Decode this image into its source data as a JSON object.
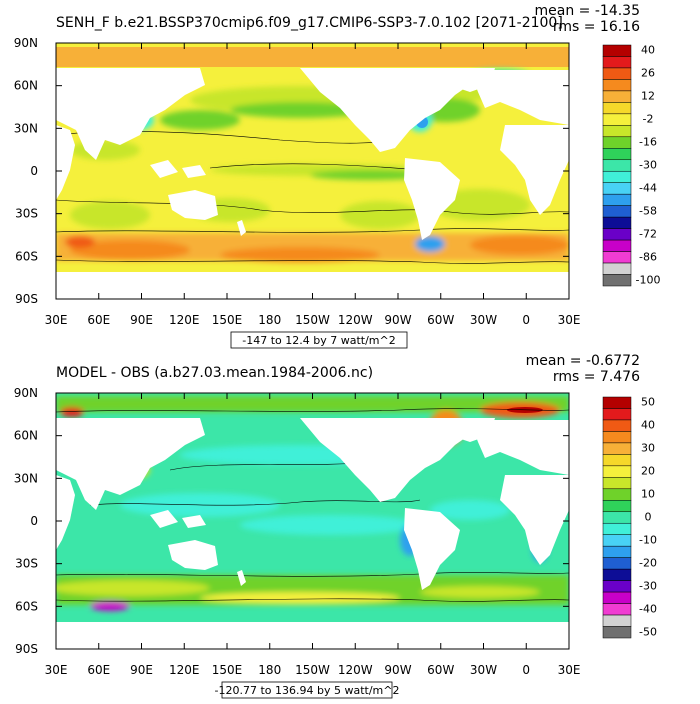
{
  "chart_data": [
    {
      "type": "heatmap",
      "title": "SENH_F b.e21.BSSP370cmip6.f09_g17.CMIP6-SSP3-7.0.102 [2071-2100]",
      "stats": {
        "mean": "mean = -14.35",
        "rms": "rms = 16.16"
      },
      "range_label": "-147 to 12.4 by 7 watt/m^2",
      "x_ticks": [
        "30E",
        "60E",
        "90E",
        "120E",
        "150E",
        "180",
        "150W",
        "120W",
        "90W",
        "60W",
        "30W",
        "0",
        "30E"
      ],
      "y_ticks": [
        "90N",
        "60N",
        "30N",
        "0",
        "30S",
        "60S",
        "90S"
      ],
      "colorbar": {
        "labels": [
          "40",
          "26",
          "12",
          "-2",
          "-16",
          "-30",
          "-44",
          "-58",
          "-72",
          "-86",
          "-100"
        ],
        "colors": [
          "#b40000",
          "#e31a1c",
          "#f05a14",
          "#f58a1e",
          "#f7b038",
          "#f5d82a",
          "#f5f03c",
          "#c8e62a",
          "#6fd22a",
          "#2fd25a",
          "#3ce6a8",
          "#40f0d8",
          "#48d2f5",
          "#2ea0ee",
          "#1f5fd2",
          "#0d0d96",
          "#6a00c8",
          "#c800c8",
          "#f03cd2",
          "#d2d2d2",
          "#707070"
        ]
      },
      "regional_values_watt_m2": {
        "tropical_pacific": -9,
        "indian_ocean": -9,
        "north_pacific": -16,
        "southern_ocean": -2,
        "subtropical_south_pacific": -9,
        "gulf_stream": -44,
        "kuroshio": -44,
        "arctic": -2
      }
    },
    {
      "type": "heatmap",
      "title": "MODEL - OBS (a.b27.03.mean.1984-2006.nc)",
      "stats": {
        "mean": "mean = -0.6772",
        "rms": "rms = 7.476"
      },
      "range_label": "-120.77 to 136.94 by 5 watt/m^2",
      "x_ticks": [
        "30E",
        "60E",
        "90E",
        "120E",
        "150E",
        "180",
        "150W",
        "120W",
        "90W",
        "60W",
        "30W",
        "0",
        "30E"
      ],
      "y_ticks": [
        "90N",
        "60N",
        "30N",
        "0",
        "30S",
        "60S",
        "90S"
      ],
      "colorbar": {
        "labels": [
          "50",
          "40",
          "30",
          "20",
          "10",
          "0",
          "-10",
          "-20",
          "-30",
          "-40",
          "-50"
        ],
        "colors": [
          "#b40000",
          "#e31a1c",
          "#f05a14",
          "#f58a1e",
          "#f7b038",
          "#f5d82a",
          "#f5f03c",
          "#c8e62a",
          "#6fd22a",
          "#2fd25a",
          "#3ce6a8",
          "#40f0d8",
          "#48d2f5",
          "#2ea0ee",
          "#1f5fd2",
          "#0d0d96",
          "#6a00c8",
          "#c800c8",
          "#f03cd2",
          "#d2d2d2",
          "#707070"
        ]
      },
      "regional_values_watt_m2": {
        "tropical_ocean": -4,
        "southern_ocean": 10,
        "gulf_stream": 35,
        "arctic_barents": 45,
        "north_atlantic": 20,
        "kuroshio": 10
      }
    }
  ]
}
